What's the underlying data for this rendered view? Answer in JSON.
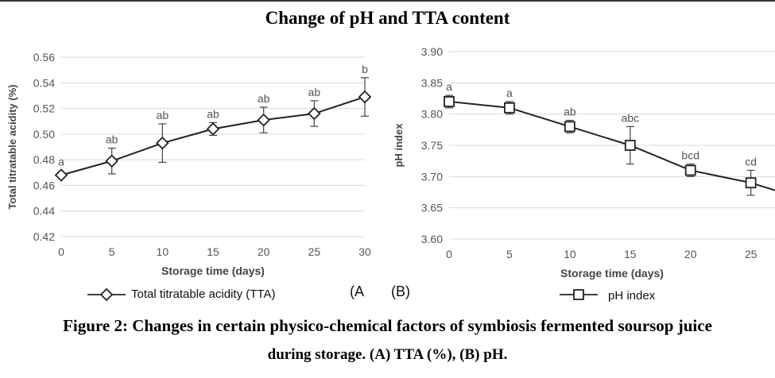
{
  "title": "Change of pH and TTA content",
  "caption_line1": "Figure 2: Changes in certain physico-chemical factors of symbiosis fermented soursop juice",
  "caption_line2": "during storage. (A) TTA (%), (B) pH.",
  "panel_labels": {
    "a": "(A",
    "b": "(B)"
  },
  "chart_data": [
    {
      "type": "line",
      "xlabel": "Storage time (days)",
      "ylabel": "Total titratable acidity (%)",
      "xlim": [
        0,
        30
      ],
      "ylim": [
        0.42,
        0.56
      ],
      "x_ticks": [
        "0",
        "5",
        "10",
        "15",
        "20",
        "25",
        "30"
      ],
      "y_ticks": [
        "0.42",
        "0.44",
        "0.46",
        "0.48",
        "0.50",
        "0.52",
        "0.54",
        "0.56"
      ],
      "grid": true,
      "marker": "diamond",
      "color": "#222222",
      "legend": "Total titratable acidity (TTA)",
      "legend_position": "bottom",
      "series": [
        {
          "name": "Total titratable acidity (TTA)",
          "x": [
            0,
            5,
            10,
            15,
            20,
            25,
            30
          ],
          "y": [
            0.468,
            0.479,
            0.493,
            0.504,
            0.511,
            0.516,
            0.529
          ],
          "error": [
            0.0,
            0.01,
            0.015,
            0.005,
            0.01,
            0.01,
            0.015
          ],
          "labels": [
            "a",
            "ab",
            "ab",
            "ab",
            "ab",
            "ab",
            "b"
          ]
        }
      ]
    },
    {
      "type": "line",
      "xlabel": "Storage time (days)",
      "ylabel": "pH index",
      "xlim": [
        0,
        27
      ],
      "ylim": [
        3.6,
        3.9
      ],
      "x_ticks": [
        "0",
        "5",
        "10",
        "15",
        "20",
        "25"
      ],
      "y_ticks": [
        "3.60",
        "3.65",
        "3.70",
        "3.75",
        "3.80",
        "3.85",
        "3.90"
      ],
      "grid": true,
      "marker": "square",
      "color": "#222222",
      "legend": "pH index",
      "legend_position": "bottom",
      "series": [
        {
          "name": "pH index",
          "x": [
            0,
            5,
            10,
            15,
            20,
            25,
            27
          ],
          "y": [
            3.82,
            3.81,
            3.78,
            3.75,
            3.71,
            3.69,
            3.678
          ],
          "error": [
            0.01,
            0.01,
            0.01,
            0.03,
            0.01,
            0.02,
            null
          ],
          "labels": [
            "a",
            "a",
            "ab",
            "abc",
            "bcd",
            "cd",
            ""
          ]
        }
      ]
    }
  ]
}
